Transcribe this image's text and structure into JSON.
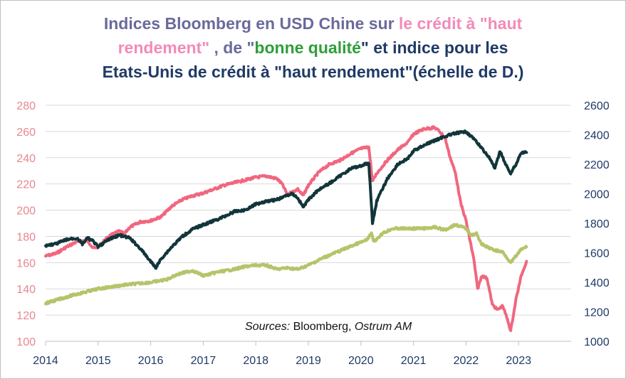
{
  "title": {
    "part1": "Indices Bloomberg en USD Chine sur ",
    "part2": "le crédit à \"haut",
    "part3": "rendement\"",
    "part4": " ,  de \"",
    "part5": "bonne qualité",
    "part6": "\" et ",
    "part7": "indice pour les",
    "part8": "Etats-Unis de crédit à \"haut rendement\"(échelle de D.)"
  },
  "source": {
    "prefix": "Sources:",
    "bloomberg": " Bloomberg, ",
    "ostrum": "Ostrum AM"
  },
  "colors": {
    "china_high_yield": "#f0677f",
    "china_investment_grade": "#b5c46a",
    "us_high_yield": "#12353a",
    "grid": "#d9d9d9"
  },
  "chart_data": {
    "type": "line",
    "title": "Indices Bloomberg en USD Chine sur le crédit à \"haut rendement\" ,  de \"bonne qualité\" et indice pour les Etats-Unis de crédit à \"haut rendement\"(échelle de D.)",
    "xlabel": "",
    "ylabel": "",
    "x_ticks": [
      "2014",
      "2015",
      "2016",
      "2017",
      "2018",
      "2019",
      "2020",
      "2021",
      "2022",
      "2023"
    ],
    "xlim": [
      2014,
      2024.0
    ],
    "y_left": {
      "lim": [
        100,
        280
      ],
      "ticks": [
        "100",
        "120",
        "140",
        "160",
        "180",
        "200",
        "220",
        "240",
        "260",
        "280"
      ]
    },
    "y_right": {
      "lim": [
        1000,
        2600
      ],
      "ticks": [
        "1000",
        "1200",
        "1400",
        "1600",
        "1800",
        "2000",
        "2200",
        "2400",
        "2600"
      ]
    },
    "grid": true,
    "legend": "none",
    "series": [
      {
        "axis": "left",
        "points": [
          [
            2014.0,
            165
          ],
          [
            2014.2,
            167
          ],
          [
            2014.4,
            172
          ],
          [
            2014.6,
            176
          ],
          [
            2014.8,
            177
          ],
          [
            2014.9,
            171
          ],
          [
            2015.0,
            172
          ],
          [
            2015.2,
            180
          ],
          [
            2015.4,
            184
          ],
          [
            2015.5,
            182
          ],
          [
            2015.6,
            187
          ],
          [
            2015.8,
            191
          ],
          [
            2016.0,
            192
          ],
          [
            2016.2,
            195
          ],
          [
            2016.4,
            203
          ],
          [
            2016.6,
            208
          ],
          [
            2016.8,
            211
          ],
          [
            2017.0,
            213
          ],
          [
            2017.2,
            216
          ],
          [
            2017.4,
            219
          ],
          [
            2017.6,
            221
          ],
          [
            2017.8,
            223
          ],
          [
            2018.0,
            225
          ],
          [
            2018.2,
            226
          ],
          [
            2018.4,
            224
          ],
          [
            2018.5,
            220
          ],
          [
            2018.6,
            212
          ],
          [
            2018.8,
            216
          ],
          [
            2018.9,
            211
          ],
          [
            2019.0,
            219
          ],
          [
            2019.2,
            229
          ],
          [
            2019.4,
            235
          ],
          [
            2019.6,
            238
          ],
          [
            2019.8,
            243
          ],
          [
            2020.0,
            247
          ],
          [
            2020.15,
            248
          ],
          [
            2020.22,
            222
          ],
          [
            2020.3,
            228
          ],
          [
            2020.5,
            238
          ],
          [
            2020.7,
            246
          ],
          [
            2020.9,
            252
          ],
          [
            2021.0,
            258
          ],
          [
            2021.2,
            262
          ],
          [
            2021.4,
            263
          ],
          [
            2021.5,
            260
          ],
          [
            2021.6,
            255
          ],
          [
            2021.7,
            240
          ],
          [
            2021.8,
            228
          ],
          [
            2021.9,
            205
          ],
          [
            2022.0,
            192
          ],
          [
            2022.1,
            172
          ],
          [
            2022.15,
            162
          ],
          [
            2022.22,
            140
          ],
          [
            2022.3,
            150
          ],
          [
            2022.4,
            148
          ],
          [
            2022.5,
            128
          ],
          [
            2022.6,
            124
          ],
          [
            2022.7,
            127
          ],
          [
            2022.8,
            115
          ],
          [
            2022.85,
            108
          ],
          [
            2022.95,
            132
          ],
          [
            2023.05,
            150
          ],
          [
            2023.15,
            161
          ]
        ]
      },
      {
        "axis": "left",
        "points": [
          [
            2014.0,
            129
          ],
          [
            2014.5,
            135
          ],
          [
            2015.0,
            140
          ],
          [
            2015.5,
            143
          ],
          [
            2016.0,
            145
          ],
          [
            2016.3,
            147
          ],
          [
            2016.5,
            151
          ],
          [
            2016.8,
            154
          ],
          [
            2017.0,
            150
          ],
          [
            2017.3,
            153
          ],
          [
            2017.6,
            155
          ],
          [
            2017.8,
            157
          ],
          [
            2018.0,
            158
          ],
          [
            2018.2,
            158
          ],
          [
            2018.4,
            155
          ],
          [
            2018.6,
            156
          ],
          [
            2018.8,
            155
          ],
          [
            2019.0,
            158
          ],
          [
            2019.3,
            164
          ],
          [
            2019.6,
            169
          ],
          [
            2019.9,
            174
          ],
          [
            2020.1,
            177
          ],
          [
            2020.2,
            182
          ],
          [
            2020.25,
            176
          ],
          [
            2020.4,
            182
          ],
          [
            2020.6,
            186
          ],
          [
            2020.8,
            186
          ],
          [
            2021.0,
            186
          ],
          [
            2021.2,
            186
          ],
          [
            2021.4,
            187
          ],
          [
            2021.6,
            185
          ],
          [
            2021.8,
            189
          ],
          [
            2022.0,
            186
          ],
          [
            2022.1,
            181
          ],
          [
            2022.2,
            182
          ],
          [
            2022.3,
            174
          ],
          [
            2022.5,
            170
          ],
          [
            2022.7,
            168
          ],
          [
            2022.85,
            160
          ],
          [
            2022.95,
            165
          ],
          [
            2023.05,
            170
          ],
          [
            2023.15,
            172
          ]
        ]
      },
      {
        "axis": "right",
        "points": [
          [
            2014.0,
            1650
          ],
          [
            2014.2,
            1660
          ],
          [
            2014.4,
            1690
          ],
          [
            2014.6,
            1700
          ],
          [
            2014.7,
            1660
          ],
          [
            2014.8,
            1700
          ],
          [
            2014.9,
            1680
          ],
          [
            2015.0,
            1640
          ],
          [
            2015.2,
            1690
          ],
          [
            2015.4,
            1720
          ],
          [
            2015.6,
            1700
          ],
          [
            2015.8,
            1630
          ],
          [
            2016.0,
            1540
          ],
          [
            2016.1,
            1500
          ],
          [
            2016.2,
            1560
          ],
          [
            2016.4,
            1640
          ],
          [
            2016.6,
            1710
          ],
          [
            2016.8,
            1760
          ],
          [
            2017.0,
            1790
          ],
          [
            2017.3,
            1830
          ],
          [
            2017.6,
            1880
          ],
          [
            2017.8,
            1890
          ],
          [
            2018.0,
            1930
          ],
          [
            2018.2,
            1950
          ],
          [
            2018.4,
            1960
          ],
          [
            2018.6,
            1990
          ],
          [
            2018.7,
            2000
          ],
          [
            2018.8,
            1970
          ],
          [
            2018.9,
            1910
          ],
          [
            2019.0,
            1960
          ],
          [
            2019.2,
            2030
          ],
          [
            2019.4,
            2070
          ],
          [
            2019.6,
            2120
          ],
          [
            2019.8,
            2170
          ],
          [
            2020.0,
            2190
          ],
          [
            2020.15,
            2210
          ],
          [
            2020.22,
            1800
          ],
          [
            2020.3,
            1950
          ],
          [
            2020.5,
            2100
          ],
          [
            2020.7,
            2200
          ],
          [
            2020.9,
            2240
          ],
          [
            2021.0,
            2290
          ],
          [
            2021.2,
            2330
          ],
          [
            2021.4,
            2360
          ],
          [
            2021.6,
            2390
          ],
          [
            2021.8,
            2410
          ],
          [
            2022.0,
            2420
          ],
          [
            2022.1,
            2390
          ],
          [
            2022.3,
            2310
          ],
          [
            2022.45,
            2240
          ],
          [
            2022.55,
            2170
          ],
          [
            2022.65,
            2290
          ],
          [
            2022.75,
            2200
          ],
          [
            2022.85,
            2140
          ],
          [
            2022.95,
            2200
          ],
          [
            2023.05,
            2280
          ],
          [
            2023.15,
            2280
          ]
        ]
      }
    ]
  }
}
